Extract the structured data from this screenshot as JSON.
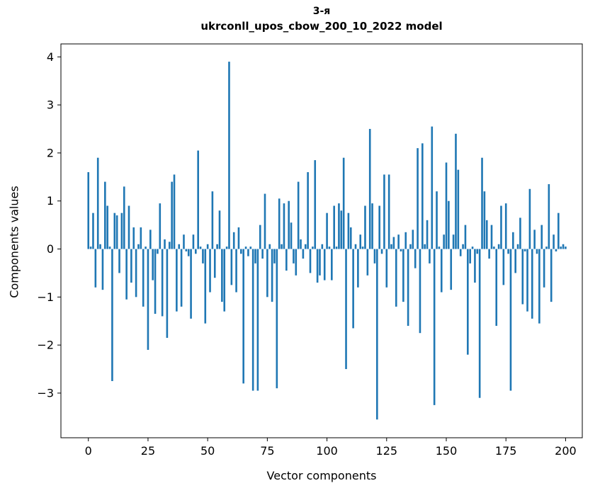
{
  "chart_data": {
    "type": "bar",
    "title_line1": "3-я",
    "title_line2": "ukrconll_upos_cbow_200_10_2022 model",
    "xlabel": "Vector components",
    "ylabel": "Components values",
    "bar_color": "#1f77b4",
    "x_ticks": [
      0,
      25,
      50,
      75,
      100,
      125,
      150,
      175,
      200
    ],
    "y_ticks": [
      -3,
      -2,
      -1,
      0,
      1,
      2,
      3,
      4
    ],
    "xlim": [
      -11.5,
      207
    ],
    "ylim": [
      -3.93,
      4.27
    ],
    "values": [
      1.6,
      0.05,
      0.75,
      -0.8,
      1.9,
      0.1,
      -0.85,
      1.4,
      0.9,
      0.05,
      -2.75,
      0.75,
      0.7,
      -0.5,
      0.75,
      1.3,
      -1.05,
      0.9,
      -0.7,
      0.45,
      -1.0,
      0.1,
      0.45,
      -1.2,
      0.05,
      -2.1,
      0.4,
      -0.65,
      -1.35,
      -0.1,
      0.95,
      -1.4,
      0.2,
      -1.85,
      0.15,
      1.4,
      1.55,
      -1.3,
      0.1,
      -1.2,
      0.3,
      -0.05,
      -0.15,
      -1.45,
      0.3,
      -0.1,
      2.05,
      0.05,
      -0.3,
      -1.55,
      0.1,
      -0.9,
      1.2,
      -0.6,
      0.1,
      0.8,
      -1.1,
      -1.3,
      0.05,
      3.9,
      -0.75,
      0.35,
      -0.9,
      0.45,
      -0.1,
      -2.8,
      0.05,
      -0.15,
      0.05,
      -2.95,
      -0.3,
      -2.95,
      0.5,
      -0.2,
      1.15,
      -1.0,
      0.1,
      -1.1,
      -0.3,
      -2.9,
      1.05,
      0.1,
      0.95,
      -0.45,
      1.0,
      0.55,
      -0.3,
      -0.55,
      1.4,
      0.2,
      -0.2,
      0.1,
      1.6,
      -0.5,
      0.05,
      1.85,
      -0.7,
      -0.55,
      0.1,
      -0.65,
      0.75,
      0.05,
      -0.65,
      0.9,
      0.05,
      0.95,
      0.8,
      1.9,
      -2.5,
      0.75,
      0.45,
      -1.65,
      0.1,
      -0.8,
      0.3,
      0.05,
      0.9,
      -0.55,
      2.5,
      0.95,
      -0.3,
      -3.55,
      0.9,
      -0.1,
      1.55,
      -0.8,
      1.55,
      0.1,
      0.25,
      -1.2,
      0.3,
      -0.05,
      -1.1,
      0.35,
      -1.6,
      0.1,
      0.4,
      -0.4,
      2.1,
      -1.75,
      2.2,
      0.1,
      0.6,
      -0.3,
      2.55,
      -3.25,
      1.2,
      0.05,
      -0.9,
      0.3,
      1.8,
      1.0,
      -0.85,
      0.3,
      2.4,
      1.65,
      -0.15,
      0.1,
      0.5,
      -2.2,
      -0.3,
      0.05,
      -0.7,
      -0.1,
      -3.1,
      1.9,
      1.2,
      0.6,
      -0.2,
      0.5,
      0.05,
      -1.6,
      0.1,
      0.9,
      -0.75,
      0.95,
      -0.1,
      -2.95,
      0.35,
      -0.5,
      0.1,
      0.65,
      -1.15,
      -0.05,
      -1.3,
      1.25,
      -1.45,
      0.4,
      -0.1,
      -1.55,
      0.5,
      -0.8,
      0.05,
      1.35,
      -1.1,
      0.3,
      -0.05,
      0.75,
      0.05,
      0.1,
      0.05
    ]
  }
}
